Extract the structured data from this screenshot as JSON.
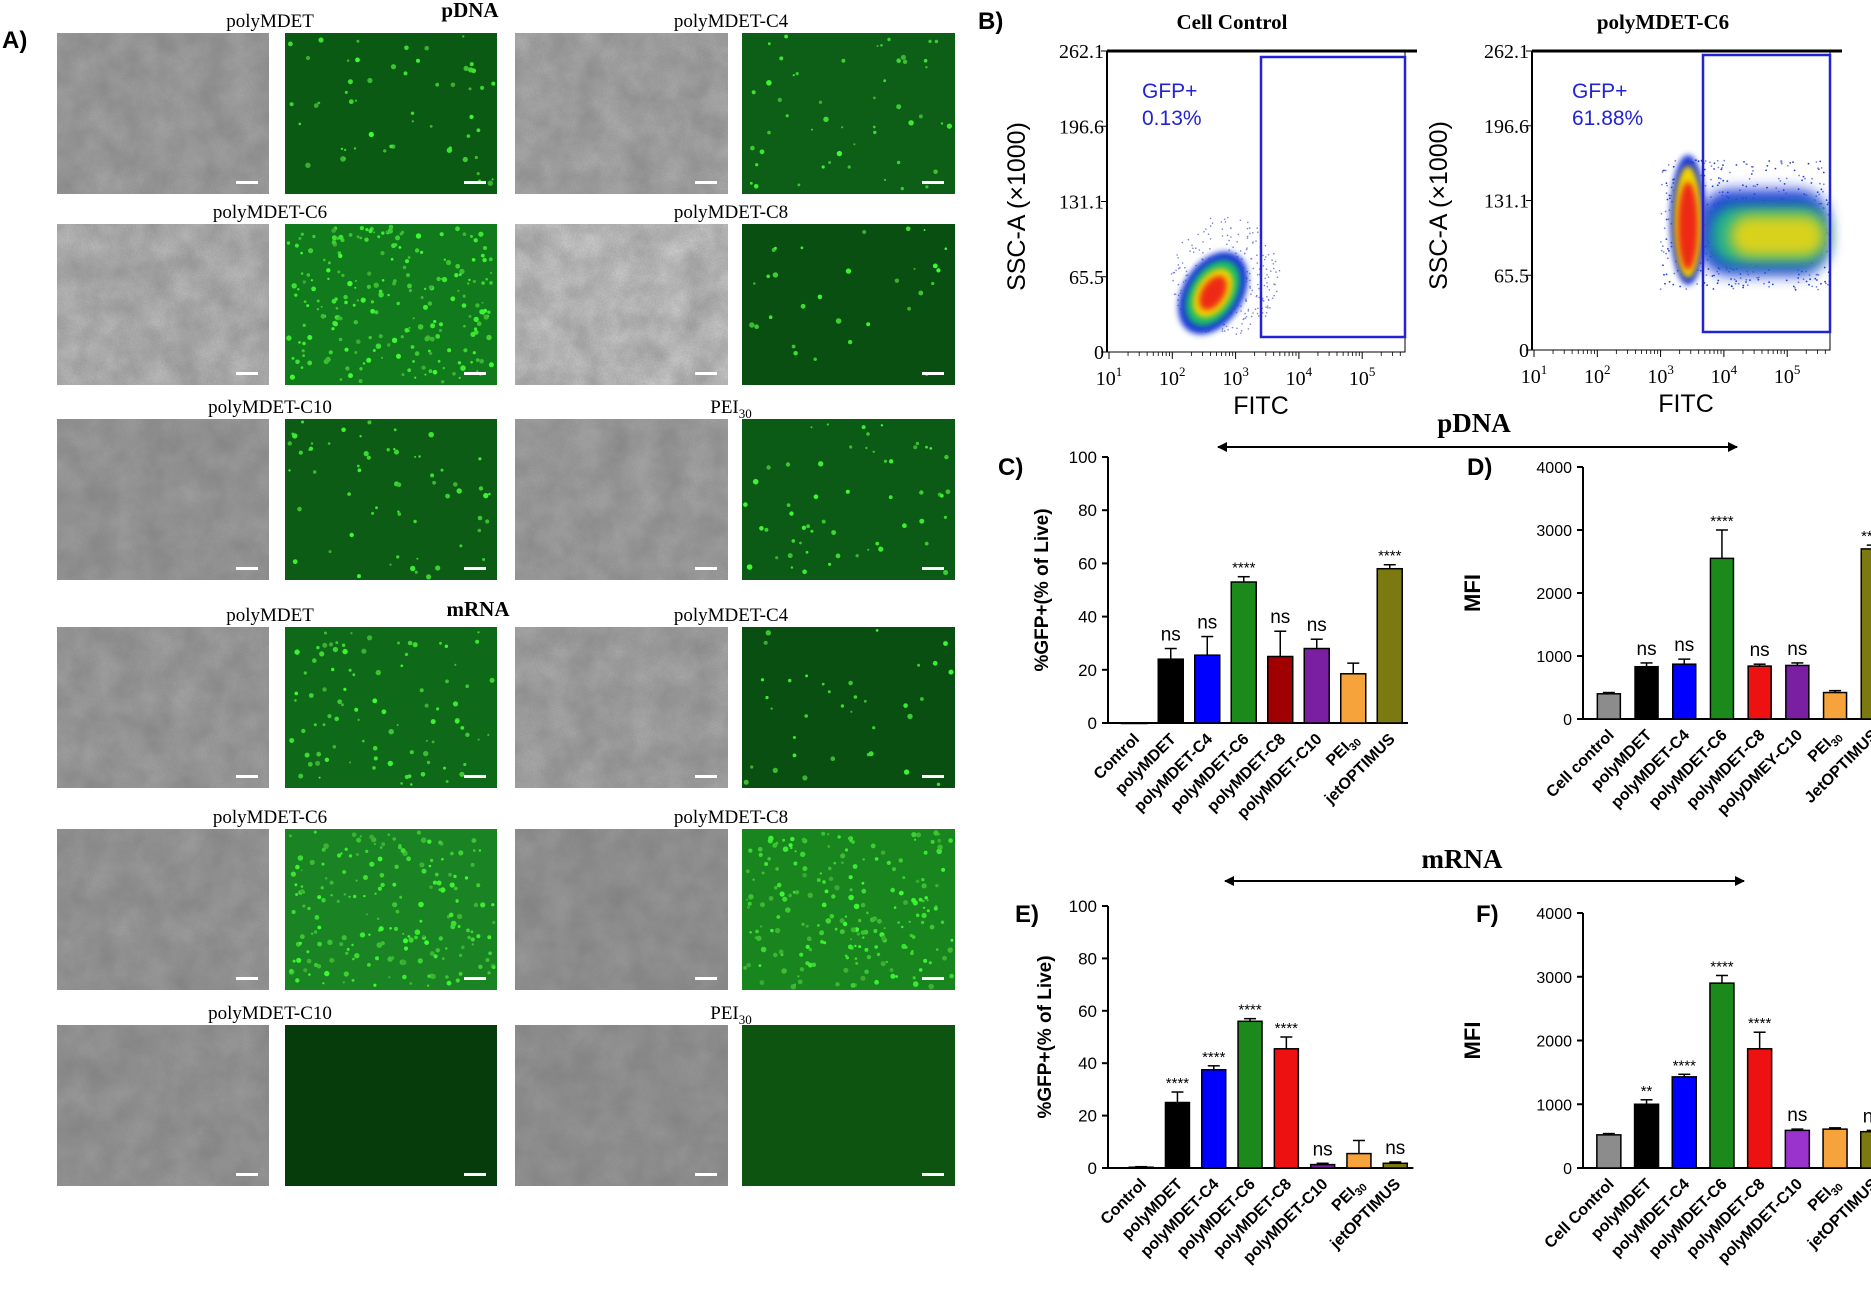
{
  "panel_a": {
    "letter": "A)",
    "pdna_header": "pDNA",
    "mrna_header": "mRNA",
    "rows": [
      {
        "left": {
          "label": "polyMDET",
          "sub": ""
        },
        "right": {
          "label": "polyMDET-C4",
          "sub": ""
        },
        "fluor": [
          "#0b5a14",
          "#0d5f17"
        ],
        "dots": [
          55,
          50
        ]
      },
      {
        "left": {
          "label": "polyMDET-C6",
          "sub": ""
        },
        "right": {
          "label": "polyMDET-C8",
          "sub": ""
        },
        "fluor": [
          "#117a1c",
          "#0a4f12"
        ],
        "dots": [
          230,
          30
        ]
      },
      {
        "left": {
          "label": "polyMDET-C10",
          "sub": ""
        },
        "right": {
          "label": "PEI",
          "sub": "30"
        },
        "fluor": [
          "#0c5c16",
          "#0b5a15"
        ],
        "dots": [
          60,
          55
        ]
      },
      {
        "left": {
          "label": "polyMDET",
          "sub": ""
        },
        "right": {
          "label": "polyMDET-C4",
          "sub": ""
        },
        "fluor": [
          "#0e6a19",
          "#0a4f12"
        ],
        "dots": [
          90,
          35
        ]
      },
      {
        "left": {
          "label": "polyMDET-C6",
          "sub": ""
        },
        "right": {
          "label": "polyMDET-C8",
          "sub": ""
        },
        "fluor": [
          "#1a8424",
          "#19851f"
        ],
        "dots": [
          200,
          220
        ]
      },
      {
        "left": {
          "label": "polyMDET-C10",
          "sub": ""
        },
        "right": {
          "label": "PEI",
          "sub": "30"
        },
        "fluor": [
          "#063c0b",
          "#0d5411"
        ],
        "dots": [
          0,
          0
        ]
      }
    ]
  },
  "panel_b": {
    "letter": "B)",
    "plots": [
      {
        "title": "Cell Control",
        "gate_label": "GFP+",
        "gate_value": "0.13%"
      },
      {
        "title": "polyMDET-C6",
        "gate_label": "GFP+",
        "gate_value": "61.88%"
      }
    ],
    "ylabel": "SSC-A (×1000)",
    "xlabel": "FITC",
    "yticks": [
      "0",
      "65.5",
      "131.1",
      "196.6",
      "262.1"
    ],
    "xticks": [
      "10",
      "10",
      "10",
      "10",
      "10"
    ],
    "xtick_exps": [
      "1",
      "2",
      "3",
      "4",
      "5"
    ]
  },
  "section_labels": {
    "pdna": "pDNA",
    "mrna": "mRNA"
  },
  "chart_data": [
    {
      "id": "C",
      "letter": "C)",
      "type": "bar",
      "ylabel": "%GFP+(% of Live)",
      "ylim": [
        0,
        100
      ],
      "yticks": [
        "0",
        "20",
        "40",
        "60",
        "80",
        "100"
      ],
      "categories": [
        {
          "label": "Control",
          "sub": ""
        },
        {
          "label": "polyMDET",
          "sub": ""
        },
        {
          "label": "polyMDET-C4",
          "sub": ""
        },
        {
          "label": "polyMDET-C6",
          "sub": ""
        },
        {
          "label": "polyMDET-C8",
          "sub": ""
        },
        {
          "label": "polyMDET-C10",
          "sub": ""
        },
        {
          "label": "PEI",
          "sub": "30"
        },
        {
          "label": "jetOPTIMUS",
          "sub": ""
        }
      ],
      "values": [
        0,
        24,
        25.5,
        53,
        25,
        28,
        18.5,
        58
      ],
      "errors": [
        0,
        4,
        7,
        2,
        9.5,
        3.5,
        4,
        1.5
      ],
      "significance": [
        "",
        "ns",
        "ns",
        "****",
        "ns",
        "ns",
        "",
        "****"
      ],
      "colors": [
        "#ffffff",
        "#000000",
        "#0000ff",
        "#1b8a1b",
        "#a00000",
        "#7a1fa2",
        "#f5a33a",
        "#7a7a10"
      ]
    },
    {
      "id": "D",
      "letter": "D)",
      "type": "bar",
      "ylabel": "MFI",
      "ylim": [
        0,
        4000
      ],
      "yticks": [
        "0",
        "1000",
        "2000",
        "3000",
        "4000"
      ],
      "categories": [
        {
          "label": "Cell control",
          "sub": ""
        },
        {
          "label": "polyMDET",
          "sub": ""
        },
        {
          "label": "polyMDET-C4",
          "sub": ""
        },
        {
          "label": "polyMDET-C6",
          "sub": ""
        },
        {
          "label": "polyMDET-C8",
          "sub": ""
        },
        {
          "label": "polyDMEY-C10",
          "sub": ""
        },
        {
          "label": "PEI",
          "sub": "30"
        },
        {
          "label": "JetOPTIMUS",
          "sub": ""
        }
      ],
      "values": [
        400,
        830,
        870,
        2550,
        840,
        850,
        420,
        2700
      ],
      "errors": [
        20,
        60,
        80,
        450,
        30,
        40,
        30,
        60
      ],
      "significance": [
        "",
        "ns",
        "ns",
        "****",
        "ns",
        "ns",
        "",
        "****"
      ],
      "colors": [
        "#8c8c8c",
        "#000000",
        "#0000ff",
        "#1b8a1b",
        "#ee1111",
        "#7a1fa2",
        "#f5a33a",
        "#7a7a10"
      ]
    },
    {
      "id": "E",
      "letter": "E)",
      "type": "bar",
      "ylabel": "%GFP+(% of Live)",
      "ylim": [
        0,
        100
      ],
      "yticks": [
        "0",
        "20",
        "40",
        "60",
        "80",
        "100"
      ],
      "categories": [
        {
          "label": "Control",
          "sub": ""
        },
        {
          "label": "polyMDET",
          "sub": ""
        },
        {
          "label": "polyMDET-C4",
          "sub": ""
        },
        {
          "label": "polyMDET-C6",
          "sub": ""
        },
        {
          "label": "polyMDET-C8",
          "sub": ""
        },
        {
          "label": "polyMDET-C10",
          "sub": ""
        },
        {
          "label": "PEI",
          "sub": "30"
        },
        {
          "label": "jetOPTIMUS",
          "sub": ""
        }
      ],
      "values": [
        0.3,
        25,
        37.5,
        56,
        45.5,
        1.3,
        5.5,
        1.8
      ],
      "errors": [
        0.2,
        4,
        1.5,
        1,
        4.5,
        0.5,
        5,
        0.5
      ],
      "significance": [
        "",
        "****",
        "****",
        "****",
        "****",
        "ns",
        "",
        "ns"
      ],
      "colors": [
        "#ffffff",
        "#000000",
        "#0000ff",
        "#1b8a1b",
        "#ee1111",
        "#7a1fa2",
        "#f5a33a",
        "#7a7a10"
      ]
    },
    {
      "id": "F",
      "letter": "F)",
      "type": "bar",
      "ylabel": "MFI",
      "ylim": [
        0,
        4000
      ],
      "yticks": [
        "0",
        "1000",
        "2000",
        "3000",
        "4000"
      ],
      "categories": [
        {
          "label": "Cell Control",
          "sub": ""
        },
        {
          "label": "polyMDET",
          "sub": ""
        },
        {
          "label": "polyMDET-C4",
          "sub": ""
        },
        {
          "label": "polyMDET-C6",
          "sub": ""
        },
        {
          "label": "polyMDET-C8",
          "sub": ""
        },
        {
          "label": "polyMDET-C10",
          "sub": ""
        },
        {
          "label": "PEI",
          "sub": "30"
        },
        {
          "label": "jetOPTIMUS",
          "sub": ""
        }
      ],
      "values": [
        520,
        1000,
        1430,
        2900,
        1870,
        590,
        610,
        570
      ],
      "errors": [
        20,
        70,
        40,
        120,
        260,
        20,
        20,
        20
      ],
      "significance": [
        "",
        "**",
        "****",
        "****",
        "****",
        "ns",
        "",
        "ns"
      ],
      "colors": [
        "#8c8c8c",
        "#000000",
        "#0000ff",
        "#1b8a1b",
        "#ee1111",
        "#9a33cc",
        "#f5a33a",
        "#7a7a10"
      ]
    }
  ]
}
